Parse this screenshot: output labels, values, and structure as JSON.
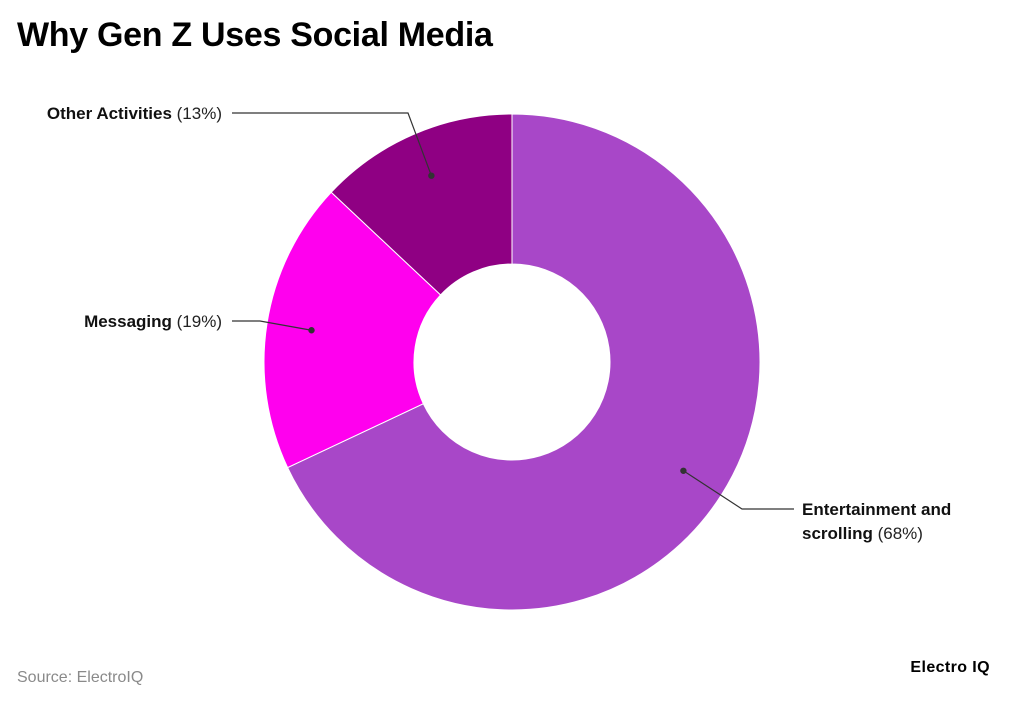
{
  "chart_data": {
    "type": "pie",
    "donut": true,
    "title": "Why Gen Z Uses Social Media",
    "slices": [
      {
        "label": "Entertainment and scrolling",
        "label_lines": [
          "Entertainment and",
          "scrolling"
        ],
        "percent_text": "(68%)",
        "value": 68,
        "color": "#a847c8"
      },
      {
        "label": "Messaging",
        "label_lines": [
          "Messaging"
        ],
        "percent_text": "(19%)",
        "value": 19,
        "color": "#ff00ee"
      },
      {
        "label": "Other Activities",
        "label_lines": [
          "Other Activities"
        ],
        "percent_text": "(13%)",
        "value": 13,
        "color": "#8f0083"
      }
    ]
  },
  "footer": {
    "source": "Source: ElectroIQ",
    "brand": "Electro IQ"
  }
}
